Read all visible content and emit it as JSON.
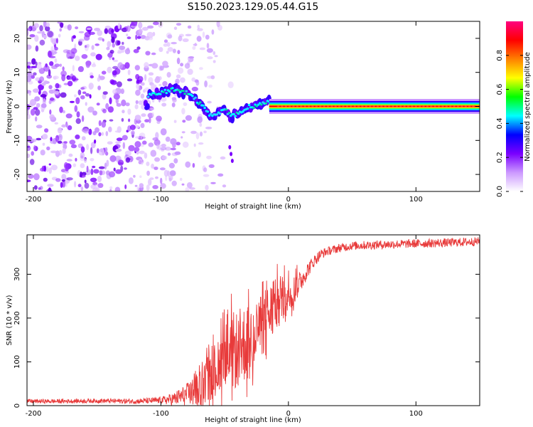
{
  "title": "S150.2023.129.05.44.G15",
  "chart_data": [
    {
      "type": "heatmap",
      "xlabel": "Height of straight line (km)",
      "ylabel": "Frequency (Hz)",
      "xlim": [
        -205,
        150
      ],
      "ylim": [
        -25,
        25
      ],
      "xticks": [
        -200,
        -100,
        0,
        100
      ],
      "yticks": [
        -20,
        -10,
        0,
        10,
        20
      ],
      "colorbar": {
        "label": "Normalized spectral amplitude",
        "range": [
          0,
          1
        ],
        "ticks": [
          "0.0",
          "0.2",
          "0.4",
          "0.6",
          "0.8"
        ],
        "colors": [
          "#ffffff",
          "#cc99ff",
          "#7a00ff",
          "#0000ff",
          "#00ffff",
          "#00ff00",
          "#ffff00",
          "#ff8000",
          "#ff0000",
          "#ff0080"
        ]
      },
      "ridge": {
        "x": [
          -110,
          -100,
          -90,
          -80,
          -75,
          -70,
          -65,
          -60,
          -55,
          -50,
          -45,
          -40,
          -35,
          -30,
          -25,
          -20,
          -15,
          -10,
          0,
          50,
          100,
          150
        ],
        "freq": [
          3,
          4,
          5,
          4,
          3,
          1,
          -1,
          -3,
          -2,
          -1,
          -3,
          -2,
          -1,
          0,
          0,
          1,
          2,
          0,
          0,
          0,
          0,
          0
        ]
      },
      "noise_region": [
        -205,
        -80
      ],
      "grid": false
    },
    {
      "type": "line",
      "xlabel": "Height of straight line (km)",
      "ylabel": "SNR (10 * v/v)",
      "xlim": [
        -205,
        150
      ],
      "ylim": [
        0,
        390
      ],
      "xticks": [
        -200,
        -100,
        0,
        100
      ],
      "yticks": [
        0,
        100,
        200,
        300
      ],
      "color": "#e83a3a",
      "x": [
        -205,
        -180,
        -150,
        -120,
        -100,
        -90,
        -80,
        -70,
        -60,
        -55,
        -50,
        -45,
        -40,
        -35,
        -30,
        -25,
        -20,
        -15,
        -10,
        -5,
        0,
        5,
        10,
        15,
        20,
        25,
        30,
        40,
        50,
        75,
        100,
        125,
        150
      ],
      "y": [
        10,
        10,
        11,
        10,
        12,
        15,
        25,
        40,
        70,
        95,
        110,
        120,
        130,
        140,
        150,
        165,
        190,
        210,
        230,
        240,
        250,
        265,
        285,
        310,
        330,
        345,
        352,
        360,
        365,
        368,
        370,
        372,
        375
      ],
      "noise_amp": [
        5,
        5,
        5,
        6,
        8,
        15,
        25,
        40,
        60,
        70,
        80,
        90,
        90,
        90,
        85,
        80,
        75,
        70,
        60,
        55,
        45,
        35,
        25,
        18,
        14,
        12,
        10,
        10,
        10,
        10,
        10,
        10,
        10
      ],
      "grid": false
    }
  ]
}
